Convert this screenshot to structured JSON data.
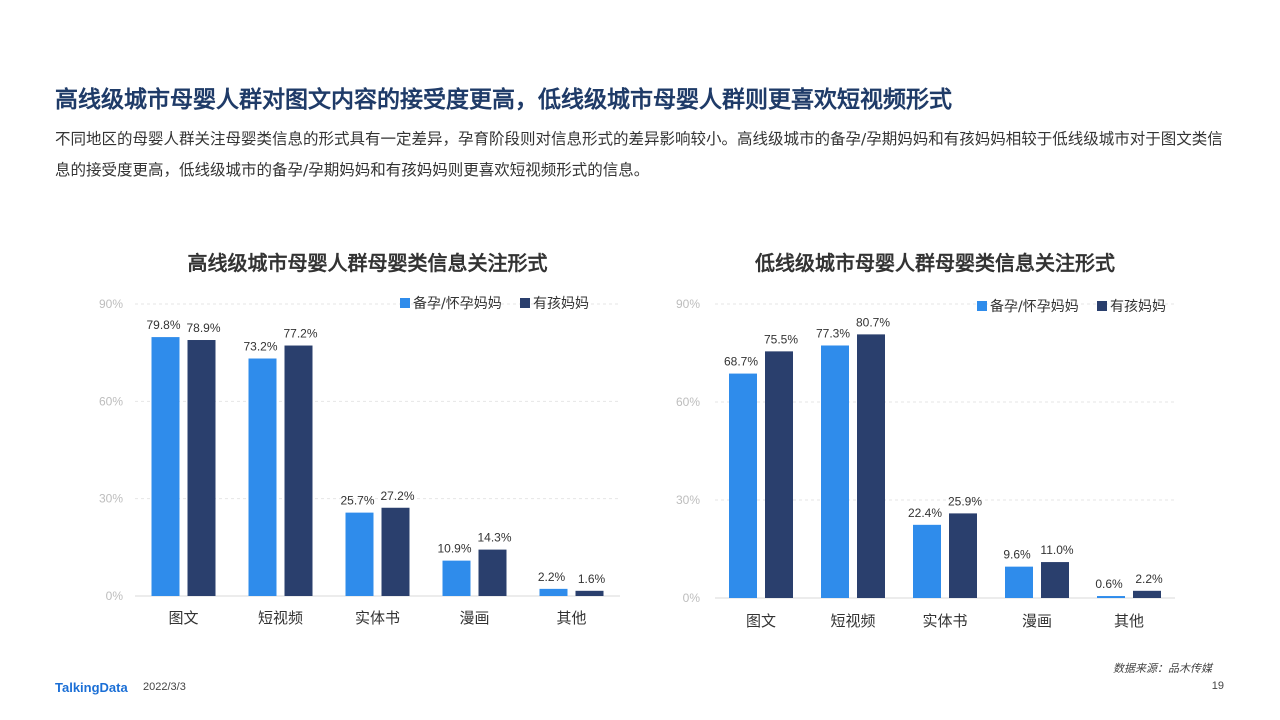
{
  "slide": {
    "headline": "高线级城市母婴人群对图文内容的接受度更高，低线级城市母婴人群则更喜欢短视频形式",
    "description": "不同地区的母婴人群关注母婴类信息的形式具有一定差异，孕育阶段则对信息形式的差异影响较小。高线级城市的备孕/孕期妈妈和有孩妈妈相较于低线级城市对于图文类信息的接受度更高，低线级城市的备孕/孕期妈妈和有孩妈妈则更喜欢短视频形式的信息。"
  },
  "chart_data": [
    {
      "type": "bar",
      "title": "高线级城市母婴人群母婴类信息关注形式",
      "categories": [
        "图文",
        "短视频",
        "实体书",
        "漫画",
        "其他"
      ],
      "series": [
        {
          "name": "备孕/怀孕妈妈",
          "values": [
            79.8,
            73.2,
            25.7,
            10.9,
            2.2
          ],
          "labels": [
            "79.8%",
            "73.2%",
            "25.7%",
            "10.9%",
            "2.2%"
          ]
        },
        {
          "name": "有孩妈妈",
          "values": [
            78.9,
            77.2,
            27.2,
            14.3,
            1.6
          ],
          "labels": [
            "78.9%",
            "77.2%",
            "27.2%",
            "14.3%",
            "1.6%"
          ]
        }
      ],
      "yticks": [
        "0%",
        "30%",
        "60%",
        "90%"
      ],
      "ylim": [
        0,
        90
      ],
      "grid": true,
      "legend": "top-right"
    },
    {
      "type": "bar",
      "title": "低线级城市母婴人群母婴类信息关注形式",
      "categories": [
        "图文",
        "短视频",
        "实体书",
        "漫画",
        "其他"
      ],
      "series": [
        {
          "name": "备孕/怀孕妈妈",
          "values": [
            68.7,
            77.3,
            22.4,
            9.6,
            0.6
          ],
          "labels": [
            "68.7%",
            "77.3%",
            "22.4%",
            "9.6%",
            "0.6%"
          ]
        },
        {
          "name": "有孩妈妈",
          "values": [
            75.5,
            80.7,
            25.9,
            11.0,
            2.2
          ],
          "labels": [
            "75.5%",
            "80.7%",
            "25.9%",
            "11.0%",
            "2.2%"
          ]
        }
      ],
      "yticks": [
        "0%",
        "30%",
        "60%",
        "90%"
      ],
      "ylim": [
        0,
        90
      ],
      "grid": true,
      "legend": "top-right"
    }
  ],
  "colors": {
    "series1": "#2f8ceb",
    "series2": "#2a3f6d",
    "grid": "#e6e6e6",
    "axis": "#d9d9d9"
  },
  "footer": {
    "logo": "TalkingData",
    "date": "2022/3/3",
    "source": "数据来源：品木传媒",
    "page": "19"
  }
}
